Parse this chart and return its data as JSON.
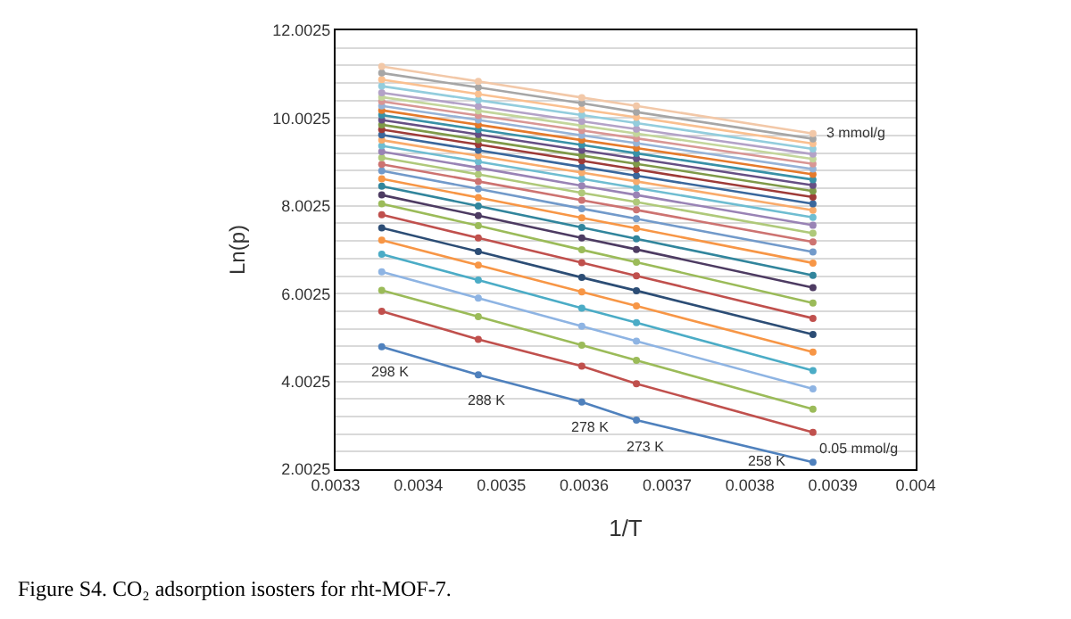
{
  "chart_data": {
    "type": "line",
    "xlabel": "1/T",
    "ylabel": "Ln(p)",
    "x": [
      0.0033557,
      0.0034722,
      0.0035971,
      0.003663,
      0.003876
    ],
    "xlim": [
      0.0033,
      0.004
    ],
    "xticks": [
      0.0033,
      0.0034,
      0.0035,
      0.0036,
      0.0037,
      0.0038,
      0.0039,
      0.004
    ],
    "ylim": [
      2.0025,
      12.0025
    ],
    "yticks": [
      2.0025,
      {
        "value": 2.4025,
        "label": null
      },
      {
        "value": 2.8025,
        "label": null
      },
      {
        "value": 3.2025,
        "label": null
      },
      {
        "value": 3.6025,
        "label": null
      },
      4.0025,
      {
        "value": 4.4025,
        "label": null
      },
      {
        "value": 4.8025,
        "label": null
      },
      {
        "value": 5.2025,
        "label": null
      },
      {
        "value": 5.6025,
        "label": null
      },
      6.0025,
      {
        "value": 6.4025,
        "label": null
      },
      {
        "value": 6.8025,
        "label": null
      },
      {
        "value": 7.2025,
        "label": null
      },
      {
        "value": 7.6025,
        "label": null
      },
      8.0025,
      {
        "value": 8.4025,
        "label": null
      },
      {
        "value": 8.8025,
        "label": null
      },
      {
        "value": 9.2025,
        "label": null
      },
      {
        "value": 9.6025,
        "label": null
      },
      10.0025,
      {
        "value": 10.4025,
        "label": null
      },
      {
        "value": 10.8025,
        "label": null
      },
      {
        "value": 11.2025,
        "label": null
      },
      {
        "value": 11.6025,
        "label": null
      },
      12.0025
    ],
    "grid": "y",
    "marker": "circle",
    "line_style": "solid",
    "annotations": [
      "298 K",
      "288 K",
      "278 K",
      "273 K",
      "258 K",
      "0.05 mmol/g",
      "3 mmol/g",
      "Figure S4. CO₂ adsorption isosters for rht-MOF-7."
    ],
    "series": [
      {
        "color": "#4f81bd",
        "values": [
          4.79,
          4.15,
          3.53,
          3.12,
          2.16
        ]
      },
      {
        "color": "#c0504d",
        "values": [
          5.6,
          4.96,
          4.35,
          3.95,
          2.84
        ]
      },
      {
        "color": "#9bbb59",
        "values": [
          6.08,
          5.48,
          4.83,
          4.48,
          3.37
        ]
      },
      {
        "color": "#8eb4e3",
        "values": [
          6.5,
          5.9,
          5.26,
          4.92,
          3.83
        ]
      },
      {
        "color": "#4bacc6",
        "values": [
          6.9,
          6.31,
          5.67,
          5.34,
          4.25
        ]
      },
      {
        "color": "#f79646",
        "values": [
          7.22,
          6.65,
          6.04,
          5.72,
          4.67
        ]
      },
      {
        "color": "#2c4d75",
        "values": [
          7.5,
          6.96,
          6.37,
          6.07,
          5.07
        ]
      },
      {
        "color": "#c0504d",
        "values": [
          7.8,
          7.27,
          6.71,
          6.41,
          5.44
        ]
      },
      {
        "color": "#9bbb59",
        "values": [
          8.05,
          7.55,
          7.0,
          6.72,
          5.79
        ]
      },
      {
        "color": "#4d3b62",
        "values": [
          8.25,
          7.78,
          7.27,
          7.01,
          6.14
        ]
      },
      {
        "color": "#31859c",
        "values": [
          8.45,
          8.0,
          7.51,
          7.25,
          6.42
        ]
      },
      {
        "color": "#f79646",
        "values": [
          8.62,
          8.19,
          7.73,
          7.49,
          6.7
        ]
      },
      {
        "color": "#729aca",
        "values": [
          8.8,
          8.39,
          7.94,
          7.71,
          6.95
        ]
      },
      {
        "color": "#cd7371",
        "values": [
          8.95,
          8.56,
          8.13,
          7.91,
          7.18
        ]
      },
      {
        "color": "#afc97a",
        "values": [
          9.1,
          8.72,
          8.3,
          8.09,
          7.38
        ]
      },
      {
        "color": "#9983b5",
        "values": [
          9.24,
          8.87,
          8.46,
          8.25,
          7.56
        ]
      },
      {
        "color": "#6fbdd1",
        "values": [
          9.37,
          9.01,
          8.62,
          8.41,
          7.74
        ]
      },
      {
        "color": "#f9ab6b",
        "values": [
          9.5,
          9.14,
          8.76,
          8.56,
          7.9
        ]
      },
      {
        "color": "#3a679c",
        "values": [
          9.62,
          9.27,
          8.89,
          8.69,
          8.05
        ]
      },
      {
        "color": "#9e3b38",
        "values": [
          9.74,
          9.4,
          9.03,
          8.83,
          8.2
        ]
      },
      {
        "color": "#7f9a48",
        "values": [
          9.85,
          9.51,
          9.15,
          8.96,
          8.34
        ]
      },
      {
        "color": "#664f84",
        "values": [
          9.96,
          9.63,
          9.27,
          9.08,
          8.47
        ]
      },
      {
        "color": "#3891a7",
        "values": [
          10.07,
          9.74,
          9.39,
          9.2,
          8.6
        ]
      },
      {
        "color": "#e57a2b",
        "values": [
          10.18,
          9.85,
          9.5,
          9.32,
          8.72
        ]
      },
      {
        "color": "#95b3d7",
        "values": [
          10.28,
          9.96,
          9.61,
          9.43,
          8.84
        ]
      },
      {
        "color": "#d99694",
        "values": [
          10.38,
          10.06,
          9.72,
          9.54,
          8.96
        ]
      },
      {
        "color": "#c3d69b",
        "values": [
          10.48,
          10.17,
          9.83,
          9.65,
          9.07
        ]
      },
      {
        "color": "#b3a2c7",
        "values": [
          10.58,
          10.27,
          9.93,
          9.75,
          9.18
        ]
      },
      {
        "color": "#93cddd",
        "values": [
          10.73,
          10.41,
          10.07,
          9.89,
          9.3
        ]
      },
      {
        "color": "#fac090",
        "values": [
          10.88,
          10.55,
          10.2,
          10.02,
          9.42
        ]
      },
      {
        "color": "#a6a6a6",
        "values": [
          11.03,
          10.7,
          10.34,
          10.14,
          9.53
        ]
      },
      {
        "color": "#f2c8a8",
        "values": [
          11.18,
          10.84,
          10.47,
          10.28,
          9.65
        ]
      }
    ]
  }
}
